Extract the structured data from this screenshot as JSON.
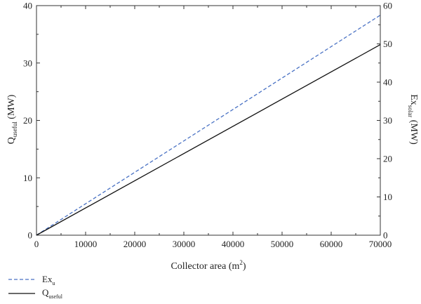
{
  "chart_data": {
    "type": "line",
    "x": [
      0,
      70000
    ],
    "xlabel": "Collector area (m",
    "xlabel_sup": "2",
    "xlabel_suffix": ")",
    "xlim": [
      0,
      70000
    ],
    "xticks": [
      0,
      10000,
      20000,
      30000,
      40000,
      50000,
      60000,
      70000
    ],
    "ylabel_left": {
      "main": "Q",
      "sub": "useful",
      "suffix": " (MW)"
    },
    "ylim_left": [
      0,
      40
    ],
    "yticks_left": [
      0,
      10,
      20,
      30,
      40
    ],
    "ylabel_right": {
      "main": "Ex",
      "sub": "solar",
      "suffix": " (MW)"
    },
    "ylim_right": [
      0,
      60
    ],
    "yticks_right": [
      0,
      10,
      20,
      30,
      40,
      50,
      60
    ],
    "grid": false,
    "legend_position": "bottom-left",
    "series": [
      {
        "name_main": "Ex",
        "name_sub": "u",
        "axis": "right",
        "style": "dashed",
        "color": "#4a72c4",
        "x": [
          0,
          70000
        ],
        "y": [
          0,
          57.5
        ]
      },
      {
        "name_main": "Q",
        "name_sub": "useful",
        "axis": "left",
        "style": "solid",
        "color": "#111111",
        "x": [
          0,
          70000
        ],
        "y": [
          0,
          33.2
        ]
      }
    ]
  }
}
